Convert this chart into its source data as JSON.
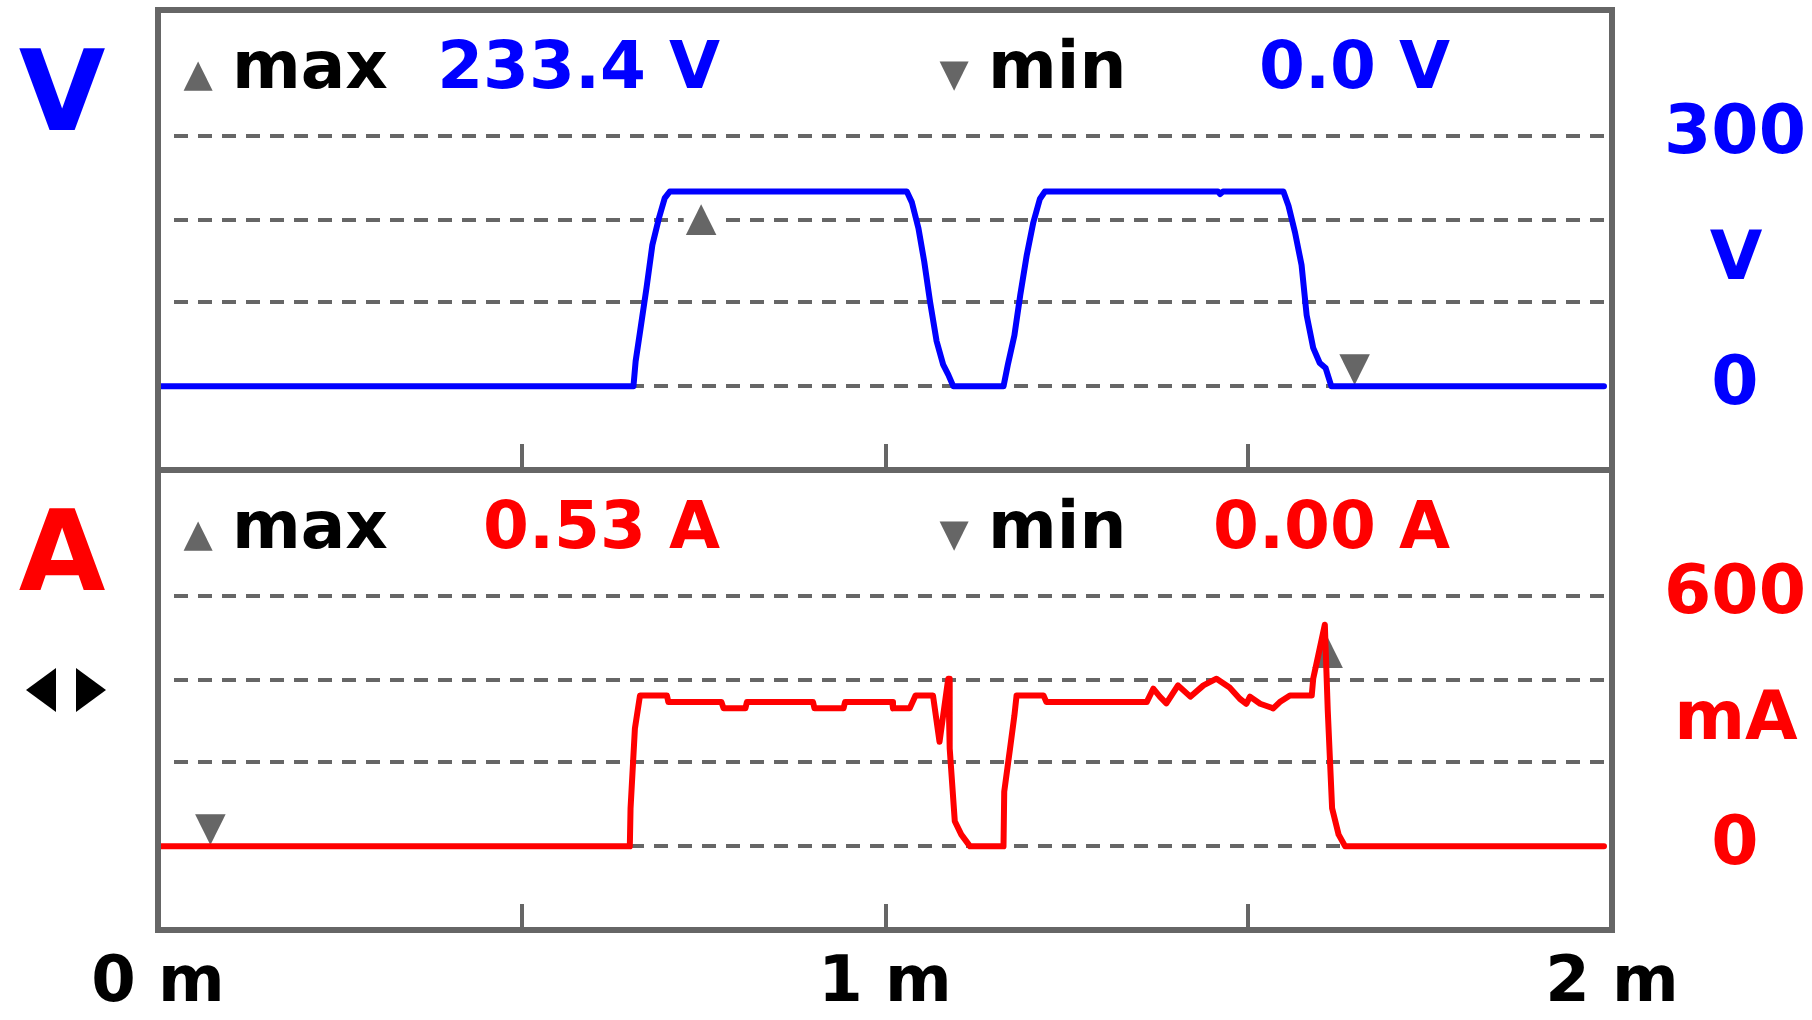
{
  "chart_data": [
    {
      "type": "line",
      "title": "V",
      "ylabel": "V",
      "x": [
        0,
        0.654,
        0.657,
        0.663,
        0.672,
        0.68,
        0.689,
        0.697,
        0.704,
        1.03,
        1.037,
        1.046,
        1.054,
        1.062,
        1.071,
        1.08,
        1.087,
        1.094,
        1.163,
        1.169,
        1.178,
        1.186,
        1.195,
        1.204,
        1.213,
        1.22,
        1.458,
        1.461,
        1.465,
        1.548,
        1.555,
        1.564,
        1.573,
        1.58,
        1.589,
        1.598,
        1.606,
        1.614,
        1.989
      ],
      "series": [
        {
          "color": "#0000ff",
          "values": [
            0,
            0,
            30,
            65,
            118,
            169,
            201,
            225,
            233,
            233,
            220,
            189,
            149,
            101,
            54,
            26,
            14,
            0,
            0,
            26,
            61,
            109,
            157,
            196,
            224,
            233,
            233,
            230,
            233,
            233,
            216,
            184,
            145,
            85,
            46,
            28,
            22,
            0,
            0
          ]
        }
      ],
      "xlim": [
        0,
        2
      ],
      "xticks": [
        {
          "value": 0.5,
          "label": null
        },
        {
          "value": 1,
          "label": null
        },
        {
          "value": 1.5,
          "label": null
        }
      ],
      "ylim": [
        -100,
        450
      ],
      "yticks": [
        0,
        {
          "value": 100,
          "label": null
        },
        {
          "value": 200,
          "label": null
        },
        300
      ],
      "grid": "y",
      "tick_labels": "y",
      "marker": "none",
      "annotations": [
        "▲",
        "max",
        "233.4 V",
        "▼",
        "min",
        "0.0 V",
        {
          "text": "▲",
          "x": 0.747,
          "y": 233
        },
        {
          "text": "▼",
          "x": 1.646,
          "y": 0
        }
      ]
    },
    {
      "type": "line",
      "title": "A",
      "ylabel": "mA",
      "x": [
        0,
        0.649,
        0.65,
        0.656,
        0.663,
        0.7,
        0.702,
        0.775,
        0.778,
        0.808,
        0.81,
        0.901,
        0.903,
        0.943,
        0.945,
        1.01,
        1.011,
        1.034,
        1.042,
        1.066,
        1.075,
        1.087,
        1.089,
        1.096,
        1.105,
        1.117,
        1.163,
        1.164,
        1.172,
        1.178,
        1.181,
        1.218,
        1.222,
        1.36,
        1.369,
        1.378,
        1.387,
        1.403,
        1.42,
        1.438,
        1.456,
        1.474,
        1.488,
        1.497,
        1.502,
        1.516,
        1.534,
        1.543,
        1.557,
        1.587,
        1.589,
        1.596,
        1.605,
        1.609,
        1.615,
        1.624,
        1.633,
        1.989
      ],
      "series": [
        {
          "color": "#ff0000",
          "values": [
            0,
            0,
            91,
            282,
            361,
            361,
            345,
            345,
            330,
            330,
            345,
            345,
            330,
            330,
            345,
            345,
            330,
            330,
            361,
            361,
            250,
            401,
            234,
            60,
            28,
            0,
            0,
            131,
            234,
            313,
            361,
            361,
            345,
            345,
            377,
            358,
            342,
            385,
            358,
            385,
            401,
            380,
            353,
            341,
            358,
            341,
            330,
            345,
            361,
            361,
            401,
            457,
            530,
            326,
            91,
            28,
            0,
            0
          ]
        }
      ],
      "xlim": [
        0,
        2
      ],
      "xticks": [
        {
          "value": 0,
          "label": "0 m"
        },
        {
          "value": 0.5,
          "label": null
        },
        {
          "value": 1,
          "label": "1 m"
        },
        {
          "value": 1.5,
          "label": null
        },
        {
          "value": 2,
          "label": "2 m"
        }
      ],
      "ylim": [
        -200,
        900
      ],
      "yticks": [
        0,
        {
          "value": 200,
          "label": null
        },
        {
          "value": 400,
          "label": null
        },
        600
      ],
      "grid": "y",
      "marker": "none",
      "annotations": [
        "▲",
        "max",
        "0.53 A",
        "▼",
        "min",
        "0.00 A",
        {
          "text": "▲",
          "x": 1.609,
          "y": 530
        },
        {
          "text": "▼",
          "x": 0.072,
          "y": 0
        }
      ]
    }
  ]
}
